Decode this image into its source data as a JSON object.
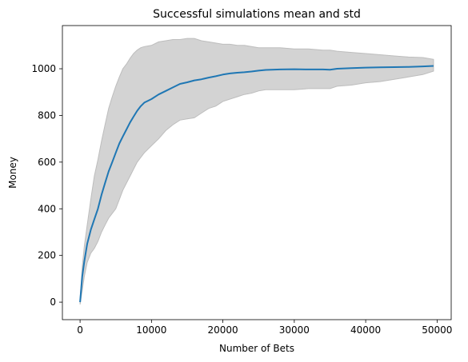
{
  "chart_data": {
    "type": "line",
    "title": "Successful simulations mean and std",
    "xlabel": "Number of Bets",
    "ylabel": "Money",
    "xlim": [
      -2475,
      51975
    ],
    "ylim": [
      -75,
      1185
    ],
    "x_ticks": [
      0,
      10000,
      20000,
      30000,
      40000,
      50000
    ],
    "y_ticks": [
      0,
      200,
      400,
      600,
      800,
      1000
    ],
    "grid": false,
    "legend": "none",
    "colors": {
      "mean_line": "#1f77b4",
      "std_band": "#d3d3d3",
      "std_band_edge": "#bdbdbd"
    },
    "series": [
      {
        "role": "mean",
        "x": [
          0,
          300,
          600,
          1000,
          1500,
          2000,
          2500,
          3000,
          3500,
          4000,
          4500,
          5000,
          5500,
          6000,
          6500,
          7000,
          7500,
          8000,
          8500,
          9000,
          10000,
          11000,
          12000,
          13000,
          14000,
          15000,
          16000,
          17000,
          18000,
          19000,
          20000,
          21000,
          22000,
          23000,
          24000,
          25000,
          26000,
          28000,
          30000,
          32000,
          34000,
          35000,
          36000,
          38000,
          40000,
          42000,
          44000,
          46000,
          48000,
          49500
        ],
        "y": [
          0,
          110,
          175,
          250,
          310,
          355,
          400,
          460,
          510,
          560,
          600,
          640,
          680,
          710,
          740,
          770,
          795,
          820,
          840,
          855,
          870,
          890,
          905,
          920,
          935,
          942,
          950,
          955,
          962,
          968,
          975,
          980,
          983,
          985,
          988,
          992,
          995,
          997,
          998,
          997,
          997,
          996,
          1000,
          1003,
          1005,
          1006,
          1007,
          1008,
          1010,
          1012
        ]
      },
      {
        "role": "std",
        "x": [
          0,
          300,
          600,
          1000,
          1500,
          2000,
          2500,
          3000,
          3500,
          4000,
          4500,
          5000,
          5500,
          6000,
          6500,
          7000,
          7500,
          8000,
          8500,
          9000,
          10000,
          11000,
          12000,
          13000,
          14000,
          15000,
          16000,
          17000,
          18000,
          19000,
          20000,
          21000,
          22000,
          23000,
          24000,
          25000,
          26000,
          28000,
          30000,
          32000,
          34000,
          35000,
          36000,
          38000,
          40000,
          42000,
          44000,
          46000,
          48000,
          49500
        ],
        "upper": [
          10,
          150,
          240,
          330,
          440,
          540,
          610,
          690,
          760,
          830,
          880,
          925,
          965,
          1000,
          1020,
          1045,
          1065,
          1080,
          1090,
          1095,
          1100,
          1115,
          1120,
          1125,
          1125,
          1130,
          1130,
          1120,
          1115,
          1110,
          1105,
          1105,
          1100,
          1100,
          1095,
          1090,
          1090,
          1090,
          1085,
          1085,
          1080,
          1080,
          1075,
          1070,
          1065,
          1060,
          1055,
          1050,
          1048,
          1040
        ],
        "lower": [
          -10,
          50,
          110,
          170,
          210,
          230,
          260,
          300,
          330,
          360,
          380,
          400,
          440,
          480,
          510,
          540,
          570,
          600,
          620,
          640,
          670,
          700,
          735,
          760,
          780,
          785,
          790,
          810,
          830,
          840,
          860,
          870,
          880,
          890,
          895,
          905,
          910,
          910,
          910,
          915,
          915,
          915,
          925,
          930,
          940,
          945,
          955,
          965,
          975,
          990
        ]
      }
    ]
  }
}
